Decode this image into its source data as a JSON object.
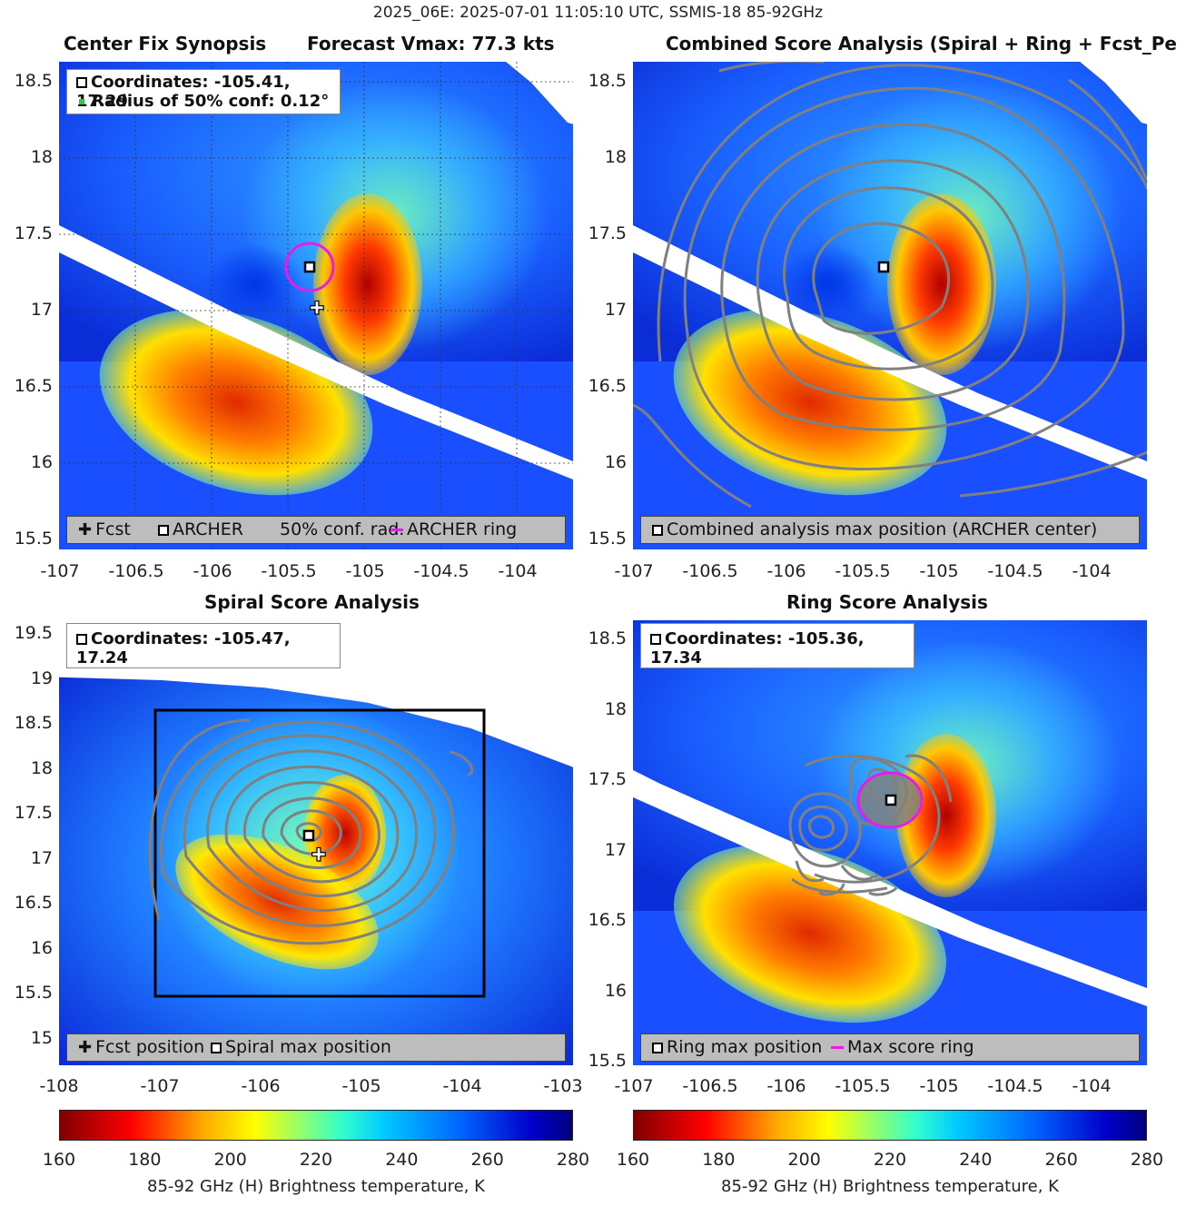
{
  "suptitle": "2025_06E: 2025-07-01 11:05:10 UTC, SSMIS-18 85-92GHz",
  "panels": {
    "p1": {
      "title": "Center Fix Synopsis",
      "title2": "Forecast Vmax: 77.3 kts",
      "legend_line1": "Coordinates: -105.41, 17.29",
      "legend_line2": "Radius of 50% conf: 0.12°",
      "bottom_legend": {
        "fcst": "Fcst",
        "archer": "ARCHER",
        "conf": "50% conf. rad.",
        "ring": "ARCHER ring"
      },
      "xticks": [
        "-107",
        "-106.5",
        "-106",
        "-105.5",
        "-105",
        "-104.5",
        "-104"
      ],
      "yticks": [
        "18.5",
        "18",
        "17.5",
        "17",
        "16.5",
        "16",
        "15.5"
      ]
    },
    "p2": {
      "title": "Combined Score Analysis (Spiral + Ring + Fcst_Pe",
      "bottom_legend": "Combined analysis max position (ARCHER center)",
      "xticks": [
        "-107",
        "-106.5",
        "-106",
        "-105.5",
        "-105",
        "-104.5",
        "-104"
      ],
      "yticks": [
        "18.5",
        "18",
        "17.5",
        "17",
        "16.5",
        "16",
        "15.5"
      ]
    },
    "p3": {
      "title": "Spiral Score Analysis",
      "legend_line1": "Coordinates: -105.47, 17.24",
      "bottom_legend": {
        "fcst": "Fcst position",
        "spiral": "Spiral max position"
      },
      "xticks": [
        "-108",
        "-107",
        "-106",
        "-105",
        "-104",
        "-103"
      ],
      "yticks": [
        "19.5",
        "19",
        "18.5",
        "18",
        "17.5",
        "17",
        "16.5",
        "16",
        "15.5",
        "15"
      ]
    },
    "p4": {
      "title": "Ring Score Analysis",
      "legend_line1": "Coordinates: -105.36, 17.34",
      "bottom_legend": {
        "ring": "Ring max position",
        "maxring": "Max score ring"
      },
      "xticks": [
        "-107",
        "-106.5",
        "-106",
        "-105.5",
        "-105",
        "-104.5",
        "-104"
      ],
      "yticks": [
        "18.5",
        "18",
        "17.5",
        "17",
        "16.5",
        "16",
        "15.5"
      ]
    }
  },
  "colorbar": {
    "ticks": [
      "160",
      "180",
      "200",
      "220",
      "240",
      "260",
      "280"
    ],
    "label": "85-92 GHz (H) Brightness temperature, K",
    "range": [
      160,
      280
    ]
  },
  "colors": {
    "ring": "#e81ce8",
    "contour": "#808080",
    "conf_marker": "#2ecc40"
  },
  "chart_data": [
    {
      "type": "heatmap",
      "title": "Center Fix Synopsis",
      "xlim": [
        -107.1,
        -103.7
      ],
      "ylim": [
        15.45,
        18.65
      ],
      "center": {
        "lon": -105.41,
        "lat": 17.29
      },
      "forecast": {
        "lon": -105.36,
        "lat": 17.03
      },
      "conf_radius_deg": 0.12
    },
    {
      "type": "heatmap",
      "title": "Combined Score Analysis (Spiral + Ring + Fcst_Pe",
      "xlim": [
        -107.1,
        -103.7
      ],
      "ylim": [
        15.45,
        18.65
      ],
      "center": {
        "lon": -105.41,
        "lat": 17.29
      }
    },
    {
      "type": "heatmap",
      "title": "Spiral Score Analysis",
      "xlim": [
        -108.2,
        -102.9
      ],
      "ylim": [
        14.65,
        19.7
      ],
      "center": {
        "lon": -105.47,
        "lat": 17.24
      },
      "forecast": {
        "lon": -105.36,
        "lat": 17.03
      }
    },
    {
      "type": "heatmap",
      "title": "Ring Score Analysis",
      "xlim": [
        -107.1,
        -103.7
      ],
      "ylim": [
        15.45,
        18.65
      ],
      "center": {
        "lon": -105.36,
        "lat": 17.34
      }
    }
  ]
}
